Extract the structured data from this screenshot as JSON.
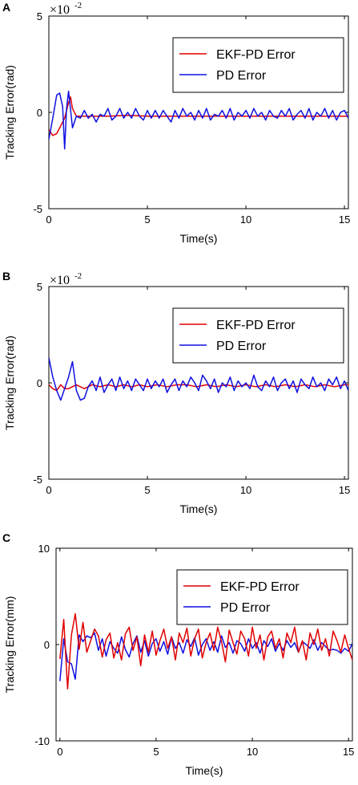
{
  "chart_data": [
    {
      "panel": "A",
      "type": "line",
      "exponent": "-2",
      "xlabel": "Time(s)",
      "ylabel": "Tracking Error(rad)",
      "xlim": [
        0,
        15.2
      ],
      "ylim": [
        -5,
        5
      ],
      "xticks": [
        0,
        5,
        10,
        15
      ],
      "yticks": [
        -5,
        0,
        5
      ],
      "legend_position": "top-right",
      "series": [
        {
          "name": "EKF-PD Error",
          "color": "#e00000",
          "x": [
            0,
            0.2,
            0.4,
            0.6,
            0.8,
            1.0,
            1.1,
            1.2,
            1.4,
            1.6,
            2.0,
            3.0,
            4.0,
            5.0,
            6.0,
            7.0,
            8.0,
            9.0,
            10.0,
            11.0,
            12.0,
            13.0,
            14.0,
            15.0,
            15.2
          ],
          "y": [
            -0.9,
            -1.2,
            -1.1,
            -0.7,
            -0.3,
            0.5,
            0.8,
            0.2,
            -0.2,
            -0.2,
            -0.2,
            -0.2,
            -0.15,
            -0.2,
            -0.2,
            -0.2,
            -0.2,
            -0.2,
            -0.2,
            -0.2,
            -0.2,
            -0.2,
            -0.2,
            -0.2,
            -0.2
          ]
        },
        {
          "name": "PD Error",
          "color": "#1010e0",
          "x": [
            0,
            0.2,
            0.4,
            0.55,
            0.7,
            0.8,
            0.9,
            1.0,
            1.2,
            1.4,
            1.6,
            1.8,
            2.0,
            2.2,
            2.4,
            2.6,
            2.8,
            3.0,
            3.2,
            3.4,
            3.6,
            3.8,
            4.0,
            4.2,
            4.4,
            4.6,
            4.8,
            5.0,
            5.2,
            5.4,
            5.6,
            5.8,
            6.0,
            6.2,
            6.4,
            6.6,
            6.8,
            7.0,
            7.2,
            7.4,
            7.6,
            7.8,
            8.0,
            8.2,
            8.4,
            8.6,
            8.8,
            9.0,
            9.2,
            9.4,
            9.6,
            9.8,
            10.0,
            10.2,
            10.4,
            10.6,
            10.8,
            11.0,
            11.2,
            11.4,
            11.6,
            11.8,
            12.0,
            12.2,
            12.4,
            12.6,
            12.8,
            13.0,
            13.2,
            13.4,
            13.6,
            13.8,
            14.0,
            14.2,
            14.4,
            14.6,
            14.8,
            15.0,
            15.2
          ],
          "y": [
            -1.4,
            -0.3,
            0.9,
            1.0,
            0.3,
            -1.9,
            0.2,
            1.1,
            -0.8,
            -0.2,
            -0.3,
            0.1,
            -0.3,
            -0.1,
            -0.5,
            -0.1,
            -0.2,
            0.2,
            -0.4,
            -0.2,
            0.2,
            -0.3,
            0.0,
            -0.3,
            0.2,
            -0.2,
            -0.4,
            0.1,
            -0.3,
            0.1,
            -0.3,
            0.1,
            -0.2,
            -0.5,
            0.1,
            -0.3,
            0.2,
            -0.2,
            0.0,
            -0.4,
            0.1,
            -0.3,
            0.2,
            -0.4,
            -0.1,
            -0.2,
            0.1,
            -0.3,
            0.2,
            -0.4,
            0.0,
            -0.2,
            0.1,
            -0.3,
            0.2,
            -0.2,
            0.0,
            -0.4,
            0.1,
            -0.2,
            -0.3,
            0.1,
            -0.2,
            0.2,
            -0.4,
            -0.1,
            0.1,
            -0.3,
            0.2,
            -0.4,
            0.0,
            -0.2,
            0.2,
            -0.3,
            0.1,
            -0.4,
            0.0,
            0.1,
            -0.3
          ]
        }
      ]
    },
    {
      "panel": "B",
      "type": "line",
      "exponent": "-2",
      "xlabel": "Time(s)",
      "ylabel": "Tracking Error(rad)",
      "xlim": [
        0,
        15.2
      ],
      "ylim": [
        -5,
        5
      ],
      "xticks": [
        0,
        5,
        10,
        15
      ],
      "yticks": [
        -5,
        0,
        5
      ],
      "legend_position": "top-right",
      "series": [
        {
          "name": "EKF-PD Error",
          "color": "#e00000",
          "x": [
            0,
            0.2,
            0.4,
            0.6,
            0.8,
            1.0,
            1.4,
            1.8,
            2.2,
            2.6,
            3.0,
            3.4,
            3.8,
            4.2,
            4.6,
            5.0,
            5.5,
            6.0,
            6.5,
            7.0,
            7.5,
            8.0,
            8.5,
            9.0,
            9.5,
            10.0,
            10.5,
            11.0,
            11.5,
            12.0,
            12.5,
            13.0,
            13.5,
            14.0,
            14.5,
            15.0,
            15.2
          ],
          "y": [
            -0.1,
            -0.3,
            -0.4,
            -0.1,
            -0.3,
            -0.3,
            -0.1,
            -0.3,
            -0.1,
            -0.2,
            -0.1,
            -0.2,
            -0.1,
            -0.2,
            -0.1,
            -0.2,
            -0.1,
            -0.2,
            -0.1,
            -0.1,
            -0.2,
            -0.1,
            -0.2,
            -0.1,
            -0.2,
            -0.1,
            -0.2,
            -0.1,
            -0.2,
            -0.1,
            -0.2,
            -0.1,
            -0.2,
            -0.1,
            -0.2,
            -0.1,
            -0.1
          ]
        },
        {
          "name": "PD Error",
          "color": "#1010e0",
          "x": [
            0,
            0.2,
            0.4,
            0.6,
            0.8,
            1.0,
            1.2,
            1.4,
            1.6,
            1.8,
            2.0,
            2.2,
            2.4,
            2.6,
            2.8,
            3.0,
            3.2,
            3.4,
            3.6,
            3.8,
            4.0,
            4.2,
            4.4,
            4.6,
            4.8,
            5.0,
            5.2,
            5.4,
            5.6,
            5.8,
            6.0,
            6.2,
            6.4,
            6.6,
            6.8,
            7.0,
            7.2,
            7.4,
            7.6,
            7.8,
            8.0,
            8.2,
            8.4,
            8.6,
            8.8,
            9.0,
            9.2,
            9.4,
            9.6,
            9.8,
            10.0,
            10.2,
            10.4,
            10.6,
            10.8,
            11.0,
            11.2,
            11.4,
            11.6,
            11.8,
            12.0,
            12.2,
            12.4,
            12.6,
            12.8,
            13.0,
            13.2,
            13.4,
            13.6,
            13.8,
            14.0,
            14.2,
            14.4,
            14.6,
            14.8,
            15.0,
            15.2
          ],
          "y": [
            1.3,
            0.3,
            -0.4,
            -0.9,
            -0.3,
            0.3,
            1.1,
            -0.4,
            -0.9,
            -0.8,
            -0.2,
            0.1,
            -0.4,
            0.3,
            -0.5,
            -0.1,
            0.2,
            -0.4,
            0.3,
            -0.3,
            0.1,
            -0.4,
            0.2,
            -0.1,
            -0.4,
            0.2,
            -0.3,
            0.1,
            -0.2,
            0.2,
            -0.5,
            -0.1,
            0.2,
            -0.4,
            0.1,
            -0.2,
            0.3,
            0.0,
            -0.4,
            0.4,
            0.1,
            -0.3,
            0.2,
            -0.5,
            0.0,
            -0.2,
            0.3,
            -0.4,
            0.1,
            -0.2,
            0.0,
            -0.3,
            0.4,
            -0.2,
            -0.4,
            0.1,
            -0.2,
            0.3,
            -0.4,
            0.0,
            0.2,
            -0.3,
            0.1,
            -0.5,
            0.2,
            -0.1,
            -0.3,
            0.3,
            -0.2,
            0.0,
            -0.4,
            0.2,
            -0.1,
            0.3,
            -0.3,
            0.1,
            -0.4
          ]
        }
      ]
    },
    {
      "panel": "C",
      "type": "line",
      "xlabel": "Time(s)",
      "ylabel": "Tracking Error(mm)",
      "xlim": [
        -0.2,
        15.2
      ],
      "ylim": [
        -10,
        10
      ],
      "xticks": [
        0,
        5,
        10,
        15
      ],
      "yticks": [
        -10,
        0,
        10
      ],
      "legend_position": "top-right",
      "series": [
        {
          "name": "EKF-PD Error",
          "color": "#e00000",
          "x": [
            0,
            0.2,
            0.4,
            0.6,
            0.8,
            1.0,
            1.2,
            1.4,
            1.6,
            1.8,
            2.0,
            2.2,
            2.4,
            2.6,
            2.8,
            3.0,
            3.2,
            3.4,
            3.6,
            3.8,
            4.0,
            4.2,
            4.4,
            4.6,
            4.8,
            5.0,
            5.2,
            5.4,
            5.6,
            5.8,
            6.0,
            6.2,
            6.4,
            6.6,
            6.8,
            7.0,
            7.2,
            7.4,
            7.6,
            7.8,
            8.0,
            8.2,
            8.4,
            8.6,
            8.8,
            9.0,
            9.2,
            9.4,
            9.6,
            9.8,
            10.0,
            10.2,
            10.4,
            10.6,
            10.8,
            11.0,
            11.2,
            11.4,
            11.6,
            11.8,
            12.0,
            12.2,
            12.4,
            12.6,
            12.8,
            13.0,
            13.2,
            13.4,
            13.6,
            13.8,
            14.0,
            14.2,
            14.4,
            14.6,
            14.8,
            15.0,
            15.2
          ],
          "y": [
            -1.5,
            2.6,
            -4.6,
            1.0,
            3.2,
            -0.5,
            2.3,
            -0.8,
            0.4,
            1.6,
            0.9,
            -1.3,
            0.5,
            1.2,
            -1.4,
            0.2,
            -1.6,
            1.1,
            1.8,
            -0.6,
            0.8,
            -2.2,
            1.0,
            -0.8,
            1.4,
            -1.1,
            0.4,
            1.6,
            -0.4,
            0.8,
            -1.6,
            1.2,
            0.2,
            1.7,
            -1.2,
            0.6,
            1.6,
            -1.4,
            0.2,
            1.2,
            -0.6,
            1.8,
            0.3,
            -1.8,
            1.5,
            0.2,
            -1.0,
            1.4,
            0.6,
            -1.2,
            1.8,
            -0.4,
            1.0,
            -1.6,
            0.8,
            1.4,
            -0.4,
            0.6,
            -1.4,
            1.2,
            0.2,
            1.8,
            -0.8,
            0.4,
            -1.6,
            1.2,
            0.0,
            1.6,
            -0.6,
            0.6,
            -1.2,
            1.4,
            0.4,
            -0.8,
            1.0,
            -0.4,
            -1.6
          ]
        },
        {
          "name": "PD Error",
          "color": "#1010e0",
          "x": [
            0,
            0.2,
            0.4,
            0.6,
            0.8,
            1.0,
            1.2,
            1.4,
            1.6,
            1.8,
            2.0,
            2.2,
            2.4,
            2.6,
            2.8,
            3.0,
            3.2,
            3.4,
            3.6,
            3.8,
            4.0,
            4.2,
            4.4,
            4.6,
            4.8,
            5.0,
            5.2,
            5.4,
            5.6,
            5.8,
            6.0,
            6.2,
            6.4,
            6.6,
            6.8,
            7.0,
            7.2,
            7.4,
            7.6,
            7.8,
            8.0,
            8.2,
            8.4,
            8.6,
            8.8,
            9.0,
            9.2,
            9.4,
            9.6,
            9.8,
            10.0,
            10.2,
            10.4,
            10.6,
            10.8,
            11.0,
            11.2,
            11.4,
            11.6,
            11.8,
            12.0,
            12.2,
            12.4,
            12.6,
            12.8,
            13.0,
            13.2,
            13.4,
            13.6,
            13.8,
            14.0,
            14.2,
            14.4,
            14.6,
            14.8,
            15.0,
            15.2
          ],
          "y": [
            -3.8,
            0.6,
            -1.8,
            -2.0,
            -3.6,
            1.0,
            0.3,
            0.9,
            0.7,
            1.2,
            -0.6,
            0.6,
            -1.2,
            0.3,
            -0.4,
            -0.9,
            0.8,
            -0.5,
            -1.3,
            0.1,
            0.9,
            -0.8,
            0.4,
            -1.2,
            0.1,
            0.6,
            -0.7,
            0.3,
            -1.0,
            0.8,
            -0.4,
            0.2,
            -0.9,
            0.5,
            -0.2,
            0.7,
            -1.1,
            0.0,
            0.6,
            -0.6,
            0.3,
            -0.8,
            0.9,
            -0.3,
            0.2,
            -0.9,
            0.4,
            0.1,
            -0.7,
            0.6,
            -0.4,
            0.2,
            -0.9,
            0.4,
            -0.2,
            0.6,
            -0.7,
            0.1,
            -0.6,
            0.4,
            -0.3,
            0.2,
            -0.8,
            0.3,
            0.0,
            -0.4,
            0.5,
            -0.6,
            0.2,
            -0.2,
            -0.6,
            -0.5,
            -0.6,
            -0.9,
            -0.4,
            -0.7,
            0.1
          ]
        }
      ]
    }
  ]
}
